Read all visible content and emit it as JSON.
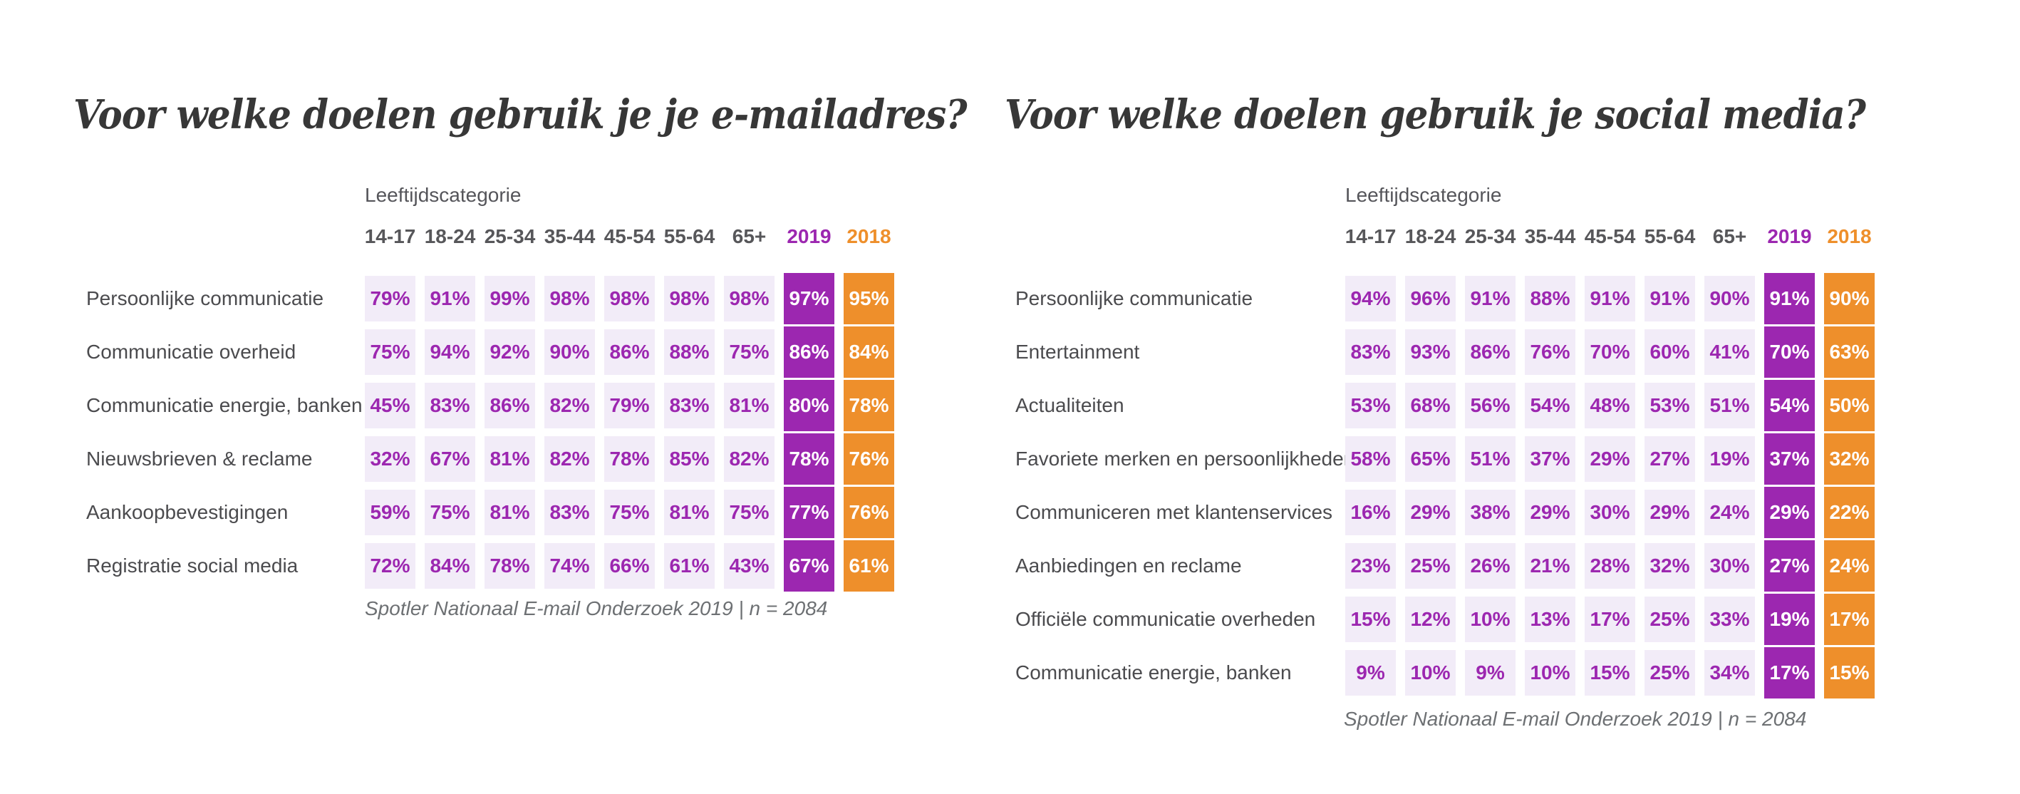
{
  "colors": {
    "purple": "#9C27B0",
    "orange": "#EE8F2B",
    "cell_bg": "#F2ECF8",
    "header_text": "#57575A",
    "label_text": "#4B4B4E",
    "title_text": "#373737",
    "footer_text": "#6D7073"
  },
  "chart_data": [
    {
      "type": "table",
      "title": "Voor welke doelen gebruik je je e-mailadres?",
      "subtitle": "Leeftijdscategorie",
      "unit": "%",
      "columns": [
        "14-17",
        "18-24",
        "25-34",
        "35-44",
        "45-54",
        "55-64",
        "65+",
        "2019",
        "2018"
      ],
      "highlight_columns": {
        "2019": "#9C27B0",
        "2018": "#EE8F2B"
      },
      "rows": [
        {
          "label": "Persoonlijke communicatie",
          "values": [
            79,
            91,
            99,
            98,
            98,
            98,
            98,
            97,
            95
          ]
        },
        {
          "label": "Communicatie overheid",
          "values": [
            75,
            94,
            92,
            90,
            86,
            88,
            75,
            86,
            84
          ]
        },
        {
          "label": "Communicatie energie, banken",
          "values": [
            45,
            83,
            86,
            82,
            79,
            83,
            81,
            80,
            78
          ]
        },
        {
          "label": "Nieuwsbrieven & reclame",
          "values": [
            32,
            67,
            81,
            82,
            78,
            85,
            82,
            78,
            76
          ]
        },
        {
          "label": "Aankoopbevestigingen",
          "values": [
            59,
            75,
            81,
            83,
            75,
            81,
            75,
            77,
            76
          ]
        },
        {
          "label": "Registratie social media",
          "values": [
            72,
            84,
            78,
            74,
            66,
            61,
            43,
            67,
            61
          ]
        }
      ],
      "footer": "Spotler Nationaal E-mail Onderzoek 2019 | n = 2084"
    },
    {
      "type": "table",
      "title": "Voor welke doelen gebruik je social media?",
      "subtitle": "Leeftijdscategorie",
      "unit": "%",
      "columns": [
        "14-17",
        "18-24",
        "25-34",
        "35-44",
        "45-54",
        "55-64",
        "65+",
        "2019",
        "2018"
      ],
      "highlight_columns": {
        "2019": "#9C27B0",
        "2018": "#EE8F2B"
      },
      "rows": [
        {
          "label": "Persoonlijke communicatie",
          "values": [
            94,
            96,
            91,
            88,
            91,
            91,
            90,
            91,
            90
          ]
        },
        {
          "label": "Entertainment",
          "values": [
            83,
            93,
            86,
            76,
            70,
            60,
            41,
            70,
            63
          ]
        },
        {
          "label": "Actualiteiten",
          "values": [
            53,
            68,
            56,
            54,
            48,
            53,
            51,
            54,
            50
          ]
        },
        {
          "label": "Favoriete merken en persoonlijkheden",
          "values": [
            58,
            65,
            51,
            37,
            29,
            27,
            19,
            37,
            32
          ]
        },
        {
          "label": "Communiceren met klantenservices",
          "values": [
            16,
            29,
            38,
            29,
            30,
            29,
            24,
            29,
            22
          ]
        },
        {
          "label": "Aanbiedingen en reclame",
          "values": [
            23,
            25,
            26,
            21,
            28,
            32,
            30,
            27,
            24
          ]
        },
        {
          "label": "Officiële communicatie overheden",
          "values": [
            15,
            12,
            10,
            13,
            17,
            25,
            33,
            19,
            17
          ]
        },
        {
          "label": "Communicatie energie, banken",
          "values": [
            9,
            10,
            9,
            10,
            15,
            25,
            34,
            17,
            15
          ]
        }
      ],
      "footer": "Spotler Nationaal E-mail Onderzoek 2019 | n = 2084"
    }
  ]
}
